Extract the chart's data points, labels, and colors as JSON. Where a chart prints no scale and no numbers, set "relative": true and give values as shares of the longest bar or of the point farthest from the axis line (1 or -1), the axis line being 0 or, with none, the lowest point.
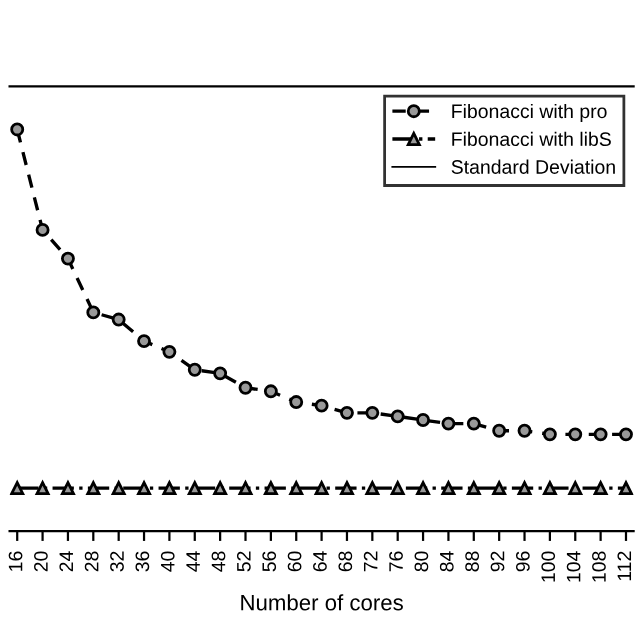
{
  "chart_data": {
    "type": "line",
    "relative": true,
    "xlabel": "Number of cores",
    "categories": [
      "16",
      "20",
      "24",
      "28",
      "32",
      "36",
      "40",
      "44",
      "48",
      "52",
      "56",
      "60",
      "64",
      "68",
      "72",
      "76",
      "80",
      "84",
      "88",
      "92",
      "96",
      "100",
      "104",
      "108",
      "112"
    ],
    "series": [
      {
        "name": "Fibonacci with pro",
        "color": "#000000",
        "marker": "circle",
        "line_style": "dashed",
        "values": [
          1.0,
          0.72,
          0.64,
          0.49,
          0.47,
          0.41,
          0.38,
          0.33,
          0.32,
          0.28,
          0.27,
          0.24,
          0.23,
          0.21,
          0.21,
          0.2,
          0.19,
          0.18,
          0.18,
          0.16,
          0.16,
          0.15,
          0.15,
          0.15,
          0.15
        ]
      },
      {
        "name": "Fibonacci with libS",
        "color": "#000000",
        "marker": "triangle",
        "line_style": "dashdot",
        "values": [
          0,
          0,
          0,
          0,
          0,
          0,
          0,
          0,
          0,
          0,
          0,
          0,
          0,
          0,
          0,
          0,
          0,
          0,
          0,
          0,
          0,
          0,
          0,
          0,
          0
        ]
      }
    ],
    "annotations": [
      "Standard Deviation"
    ],
    "legend": "top right"
  }
}
